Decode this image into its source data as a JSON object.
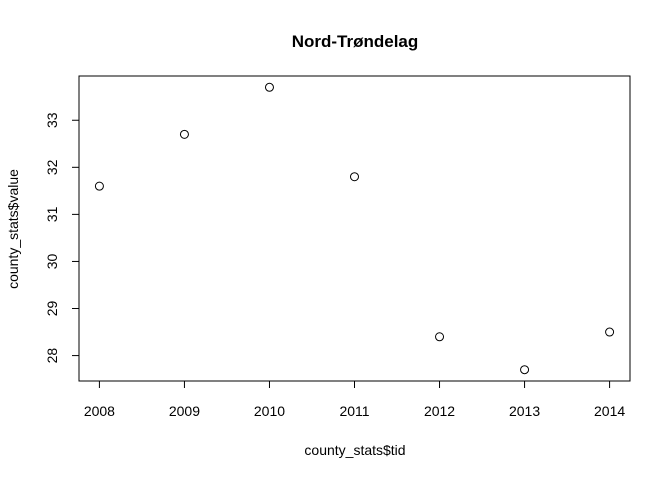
{
  "chart_data": {
    "type": "scatter",
    "title": "Nord-Trøndelag",
    "xlabel": "county_stats$tid",
    "ylabel": "county_stats$value",
    "x": [
      2008,
      2009,
      2010,
      2011,
      2012,
      2013,
      2014
    ],
    "y": [
      31.6,
      32.7,
      33.7,
      31.8,
      28.4,
      27.7,
      28.5
    ],
    "xlim": [
      2007.76,
      2014.24
    ],
    "ylim": [
      27.46,
      33.94
    ],
    "x_ticks": [
      2008,
      2009,
      2010,
      2011,
      2012,
      2013,
      2014
    ],
    "y_ticks": [
      28,
      29,
      30,
      31,
      32,
      33
    ],
    "grid": false,
    "legend": "none",
    "marker": "open-circle",
    "colors": {
      "points": "#000000",
      "axes": "#000000",
      "background": "#ffffff"
    }
  }
}
